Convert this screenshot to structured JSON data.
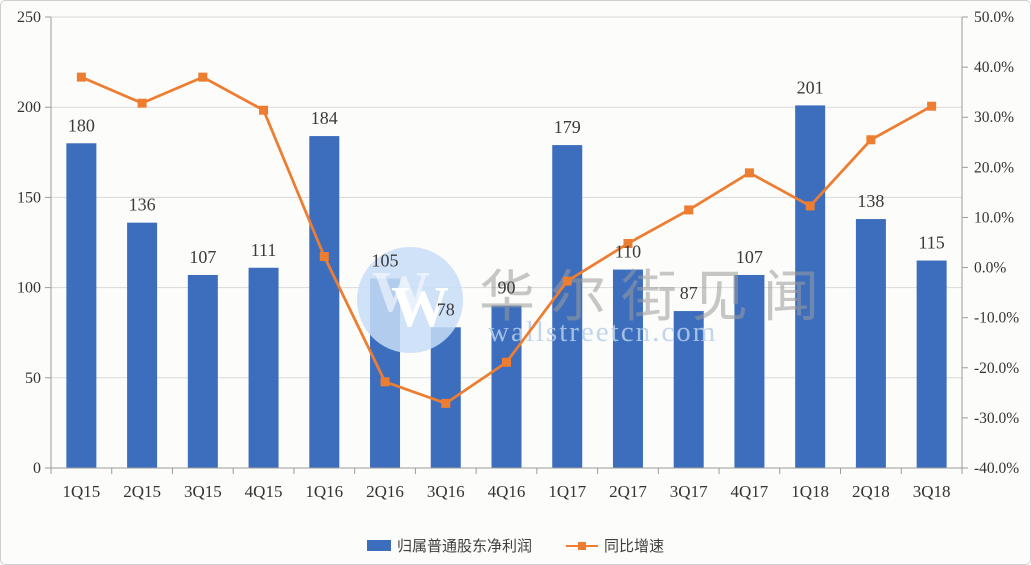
{
  "watermark": {
    "logo_letter": "W",
    "site_name": "华尔街见闻",
    "site_domain": "wallstreetcn.com",
    "circle_color": "#C7DDF7"
  },
  "colors": {
    "bar": "#3D6EBE",
    "line": "#ED7D31",
    "grid": "#D9D9D9",
    "axis": "#9B9B9B",
    "tick_label": "#333333",
    "data_label": "#3a3a3a",
    "background": "#FCFCFA"
  },
  "chart_data": {
    "type": "combo-bar-line",
    "categories": [
      "1Q15",
      "2Q15",
      "3Q15",
      "4Q15",
      "1Q16",
      "2Q16",
      "3Q16",
      "4Q16",
      "1Q17",
      "2Q17",
      "3Q17",
      "4Q17",
      "1Q18",
      "2Q18",
      "3Q18"
    ],
    "series": [
      {
        "name": "归属普通股东净利润",
        "type": "bar",
        "axis": "left",
        "color": "#3D6EBE",
        "values": [
          180,
          136,
          107,
          111,
          184,
          105,
          78,
          90,
          179,
          110,
          87,
          107,
          201,
          138,
          115
        ],
        "data_labels": [
          "180",
          "136",
          "107",
          "111",
          "184",
          "105",
          "78",
          "90",
          "179",
          "110",
          "87",
          "107",
          "201",
          "138",
          "115"
        ]
      },
      {
        "name": "同比增速",
        "type": "line",
        "axis": "right",
        "color": "#ED7D31",
        "values_pct": [
          38.0,
          32.8,
          38.0,
          31.4,
          2.2,
          -22.8,
          -27.1,
          -18.9,
          -2.7,
          4.8,
          11.5,
          18.9,
          12.3,
          25.5,
          32.2
        ]
      }
    ],
    "left_axis": {
      "min": 0,
      "max": 250,
      "step": 50,
      "tick_labels": [
        "250",
        "200",
        "150",
        "100",
        "50",
        "0"
      ]
    },
    "right_axis": {
      "min": -40,
      "max": 50,
      "step": 10,
      "tick_labels": [
        "50.0%",
        "40.0%",
        "30.0%",
        "20.0%",
        "10.0%",
        "0.0%",
        "-10.0%",
        "-20.0%",
        "-30.0%",
        "-40.0%"
      ]
    },
    "grid": true,
    "legend_position": "bottom"
  }
}
